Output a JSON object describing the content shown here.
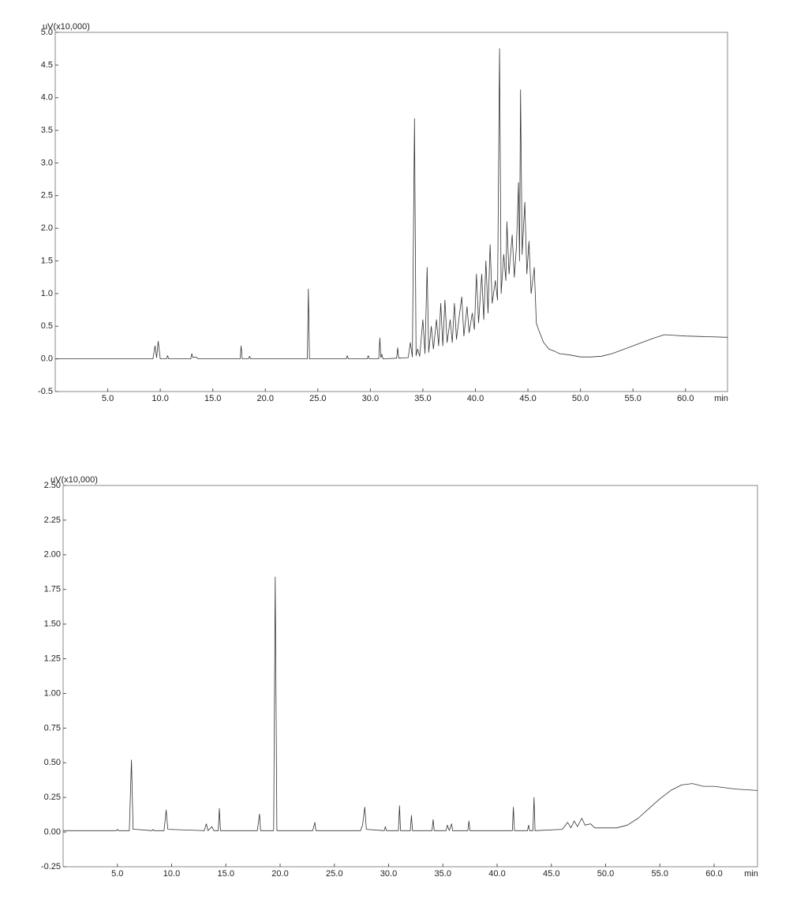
{
  "chart_data": [
    {
      "type": "line",
      "y_label": "uV(x10,000)",
      "x_label": "min",
      "color": "#333333",
      "xlim": [
        0,
        64
      ],
      "ylim": [
        -0.5,
        5.0
      ],
      "xticks": [
        {
          "value": 5,
          "label": "5.0"
        },
        {
          "value": 10,
          "label": "10.0"
        },
        {
          "value": 15,
          "label": "15.0"
        },
        {
          "value": 20,
          "label": "20.0"
        },
        {
          "value": 25,
          "label": "25.0"
        },
        {
          "value": 30,
          "label": "30.0"
        },
        {
          "value": 35,
          "label": "35.0"
        },
        {
          "value": 40,
          "label": "40.0"
        },
        {
          "value": 45,
          "label": "45.0"
        },
        {
          "value": 50,
          "label": "50.0"
        },
        {
          "value": 55,
          "label": "55.0"
        },
        {
          "value": 60,
          "label": "60.0"
        }
      ],
      "yticks": [
        {
          "value": -0.5,
          "label": "-0.5"
        },
        {
          "value": 0,
          "label": "0.0"
        },
        {
          "value": 0.5,
          "label": "0.5"
        },
        {
          "value": 1,
          "label": "1.0"
        },
        {
          "value": 1.5,
          "label": "1.5"
        },
        {
          "value": 2,
          "label": "2.0"
        },
        {
          "value": 2.5,
          "label": "2.5"
        },
        {
          "value": 3,
          "label": "3.0"
        },
        {
          "value": 3.5,
          "label": "3.5"
        },
        {
          "value": 4,
          "label": "4.0"
        },
        {
          "value": 4.5,
          "label": "4.5"
        },
        {
          "value": 5,
          "label": "5.0"
        }
      ],
      "x": [
        0,
        9.3,
        9.5,
        9.65,
        9.8,
        10.0,
        10.6,
        10.7,
        10.8,
        12.9,
        13.0,
        13.1,
        13.4,
        13.6,
        17.6,
        17.7,
        17.8,
        18.4,
        18.5,
        18.6,
        24.0,
        24.1,
        24.2,
        27.7,
        27.8,
        27.9,
        29.7,
        29.8,
        29.9,
        30.8,
        30.9,
        31.0,
        31.1,
        31.2,
        32.5,
        32.6,
        32.7,
        33.6,
        33.8,
        34.0,
        34.2,
        34.35,
        34.5,
        34.7,
        35.0,
        35.2,
        35.4,
        35.55,
        35.8,
        36.0,
        36.3,
        36.5,
        36.7,
        36.9,
        37.1,
        37.3,
        37.6,
        37.8,
        38.0,
        38.2,
        38.5,
        38.7,
        38.9,
        39.2,
        39.4,
        39.7,
        39.9,
        40.1,
        40.3,
        40.6,
        40.8,
        41.0,
        41.2,
        41.4,
        41.6,
        41.9,
        42.1,
        42.3,
        42.45,
        42.7,
        42.9,
        43.0,
        43.2,
        43.5,
        43.7,
        43.9,
        44.1,
        44.2,
        44.3,
        44.45,
        44.7,
        44.9,
        45.1,
        45.3,
        45.6,
        45.8,
        46.0,
        46.5,
        47.0,
        47.5,
        48.0,
        49.0,
        50.0,
        51.0,
        52.0,
        53.0,
        54.0,
        55.0,
        56.0,
        57.0,
        58.0,
        59.0,
        60.0,
        62.0,
        64.0
      ],
      "values": [
        0,
        0,
        0.2,
        0.02,
        0.27,
        0,
        0,
        0.05,
        0,
        0,
        0.08,
        0.02,
        0.03,
        0,
        0,
        0.2,
        0,
        0,
        0.04,
        0,
        0,
        1.07,
        0,
        0,
        0.05,
        0,
        0,
        0.05,
        0,
        0,
        0.32,
        0.02,
        0.07,
        0,
        0.01,
        0.17,
        0.01,
        0.02,
        0.25,
        0.03,
        3.68,
        0.05,
        0.15,
        0.04,
        0.6,
        0.08,
        1.4,
        0.1,
        0.5,
        0.15,
        0.6,
        0.2,
        0.85,
        0.2,
        0.9,
        0.25,
        0.6,
        0.25,
        0.85,
        0.3,
        0.7,
        0.95,
        0.35,
        0.8,
        0.4,
        0.7,
        0.45,
        1.3,
        0.55,
        1.3,
        0.6,
        1.5,
        0.7,
        1.75,
        0.85,
        1.2,
        0.9,
        4.75,
        1.0,
        1.6,
        1.2,
        2.1,
        1.3,
        1.9,
        1.25,
        1.7,
        2.7,
        1.5,
        4.12,
        1.6,
        2.4,
        1.3,
        1.8,
        1.0,
        1.4,
        0.55,
        0.45,
        0.25,
        0.15,
        0.12,
        0.08,
        0.06,
        0.03,
        0.03,
        0.04,
        0.08,
        0.14,
        0.2,
        0.26,
        0.32,
        0.37,
        0.36,
        0.35,
        0.34,
        0.33
      ]
    },
    {
      "type": "line",
      "y_label": "uV(x10,000)",
      "x_label": "min",
      "color": "#333333",
      "xlim": [
        0,
        64
      ],
      "ylim": [
        -0.25,
        2.5
      ],
      "xticks": [
        {
          "value": 5,
          "label": "5.0"
        },
        {
          "value": 10,
          "label": "10.0"
        },
        {
          "value": 15,
          "label": "15.0"
        },
        {
          "value": 20,
          "label": "20.0"
        },
        {
          "value": 25,
          "label": "25.0"
        },
        {
          "value": 30,
          "label": "30.0"
        },
        {
          "value": 35,
          "label": "35.0"
        },
        {
          "value": 40,
          "label": "40.0"
        },
        {
          "value": 45,
          "label": "45.0"
        },
        {
          "value": 50,
          "label": "50.0"
        },
        {
          "value": 55,
          "label": "55.0"
        },
        {
          "value": 60,
          "label": "60.0"
        }
      ],
      "yticks": [
        {
          "value": -0.25,
          "label": "-0.25"
        },
        {
          "value": 0,
          "label": "0.00"
        },
        {
          "value": 0.25,
          "label": "0.25"
        },
        {
          "value": 0.5,
          "label": "0.50"
        },
        {
          "value": 0.75,
          "label": "0.75"
        },
        {
          "value": 1,
          "label": "1.00"
        },
        {
          "value": 1.25,
          "label": "1.25"
        },
        {
          "value": 1.5,
          "label": "1.50"
        },
        {
          "value": 1.75,
          "label": "1.75"
        },
        {
          "value": 2,
          "label": "2.00"
        },
        {
          "value": 2.25,
          "label": "2.25"
        },
        {
          "value": 2.5,
          "label": "2.50"
        }
      ],
      "x": [
        0,
        4.9,
        5.0,
        5.1,
        6.1,
        6.3,
        6.45,
        6.7,
        8.2,
        8.3,
        8.4,
        9.3,
        9.5,
        9.65,
        13.0,
        13.2,
        13.35,
        13.7,
        13.9,
        14.3,
        14.4,
        14.5,
        17.9,
        18.1,
        18.2,
        19.4,
        19.55,
        19.7,
        23.0,
        23.2,
        23.3,
        27.4,
        27.6,
        27.8,
        27.95,
        29.6,
        29.7,
        29.8,
        30.9,
        31.0,
        31.1,
        32.0,
        32.1,
        32.2,
        34.0,
        34.1,
        34.2,
        35.3,
        35.4,
        35.6,
        35.8,
        35.9,
        37.3,
        37.4,
        37.5,
        41.4,
        41.5,
        41.6,
        42.8,
        42.9,
        43.0,
        43.3,
        43.4,
        43.5,
        46.0,
        46.5,
        46.8,
        47.1,
        47.4,
        47.8,
        48.1,
        48.6,
        49.0,
        50.0,
        51.0,
        52.0,
        53.0,
        54.0,
        55.0,
        56.0,
        57.0,
        58.0,
        59.0,
        60.0,
        62.0,
        64.0
      ],
      "values": [
        0.01,
        0.01,
        0.02,
        0.01,
        0.01,
        0.52,
        0.02,
        0.02,
        0.01,
        0.02,
        0.01,
        0.01,
        0.16,
        0.02,
        0.01,
        0.06,
        0.01,
        0.04,
        0.01,
        0.01,
        0.17,
        0.01,
        0.01,
        0.13,
        0.01,
        0.01,
        1.84,
        0.01,
        0.01,
        0.07,
        0.01,
        0.01,
        0.05,
        0.18,
        0.02,
        0.01,
        0.04,
        0.01,
        0.01,
        0.19,
        0.01,
        0.01,
        0.12,
        0.01,
        0.01,
        0.09,
        0.01,
        0.01,
        0.05,
        0.01,
        0.06,
        0.01,
        0.01,
        0.08,
        0.01,
        0.01,
        0.18,
        0.01,
        0.01,
        0.05,
        0.01,
        0.01,
        0.25,
        0.01,
        0.02,
        0.07,
        0.03,
        0.08,
        0.04,
        0.1,
        0.05,
        0.06,
        0.03,
        0.03,
        0.03,
        0.05,
        0.1,
        0.17,
        0.24,
        0.3,
        0.34,
        0.35,
        0.33,
        0.33,
        0.31,
        0.3
      ]
    }
  ]
}
